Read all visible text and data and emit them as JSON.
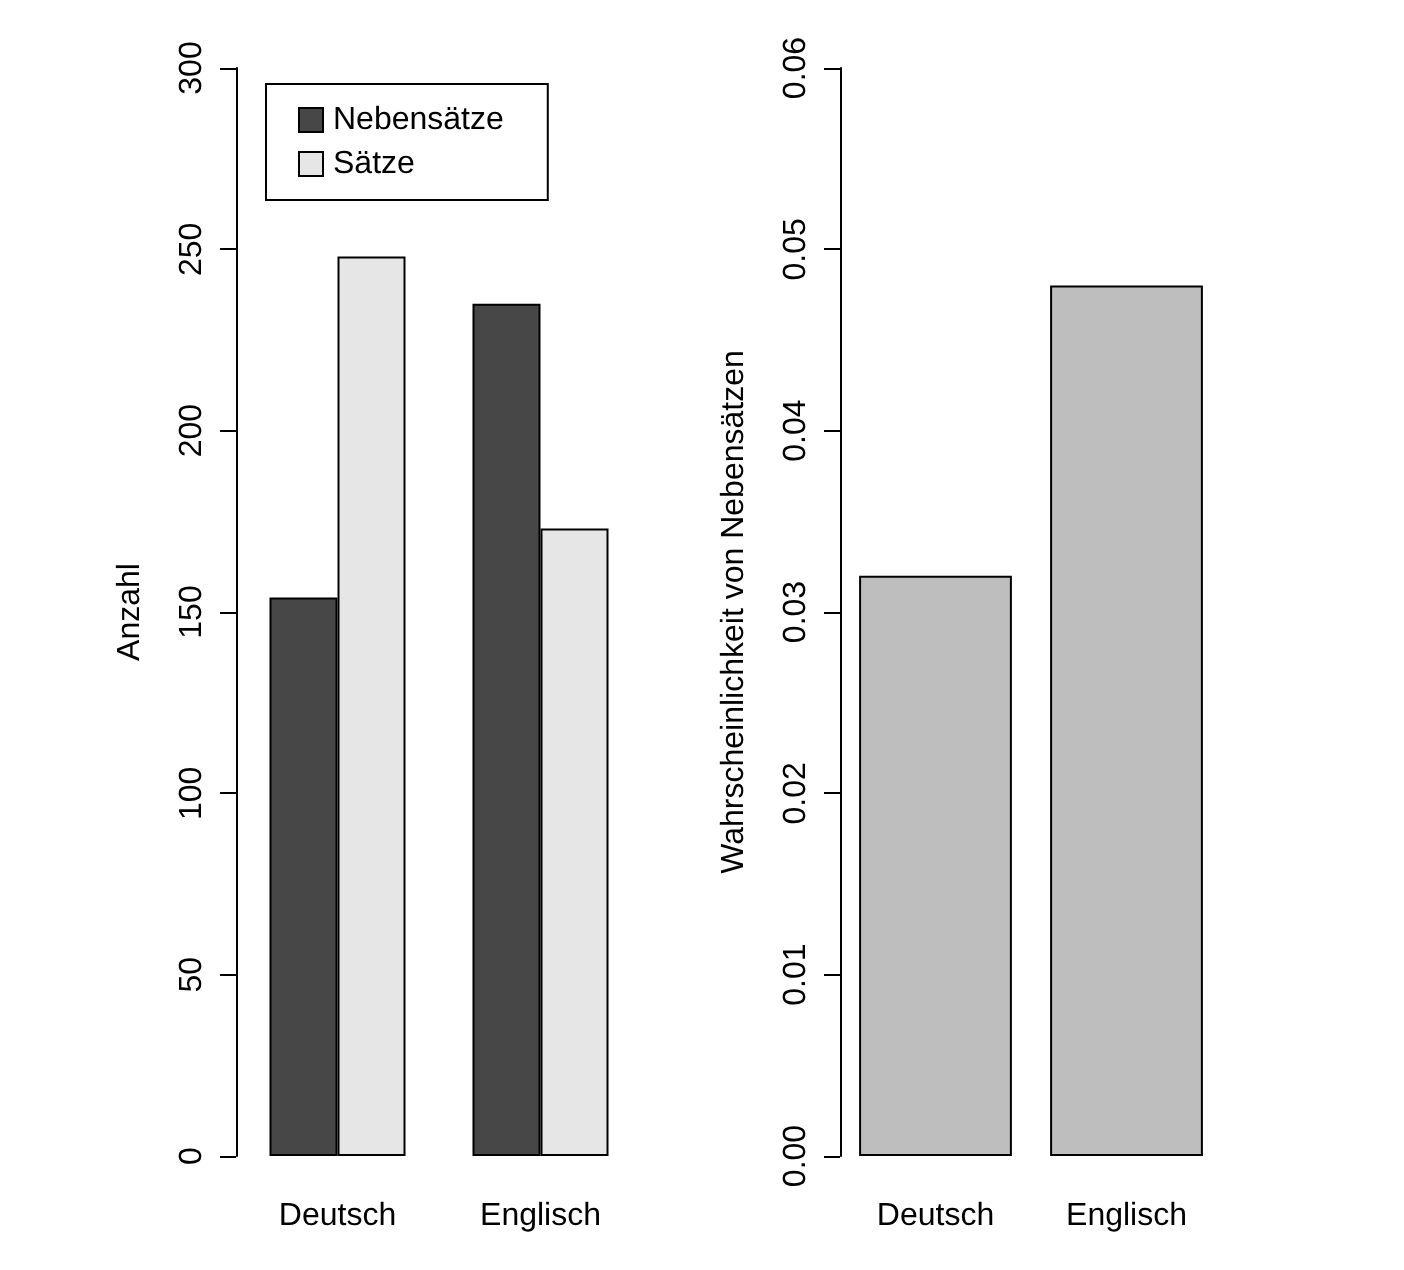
{
  "chart_data": [
    {
      "type": "bar",
      "ylabel": "Anzahl",
      "categories": [
        "Deutsch",
        "Englisch"
      ],
      "series": [
        {
          "name": "Nebensätze",
          "color": "#474747",
          "values": [
            154,
            235
          ]
        },
        {
          "name": "Sätze",
          "color": "#e6e6e6",
          "values": [
            248,
            173
          ]
        }
      ],
      "ylim": [
        0,
        300
      ],
      "yticks": [
        0,
        50,
        100,
        150,
        200,
        250,
        300
      ],
      "legend": "top",
      "grid": false
    },
    {
      "type": "bar",
      "ylabel": "Wahrscheinlichkeit von Nebensätzen",
      "categories": [
        "Deutsch",
        "Englisch"
      ],
      "series": [
        {
          "color": "#bebebe",
          "values": [
            0.032,
            0.048
          ]
        }
      ],
      "ylim": [
        0,
        0.06
      ],
      "yticks": [
        {
          "value": 0,
          "label": "0.00"
        },
        {
          "value": 0.01,
          "label": "0.01"
        },
        {
          "value": 0.02,
          "label": "0.02"
        },
        {
          "value": 0.03,
          "label": "0.03"
        },
        {
          "value": 0.04,
          "label": "0.04"
        },
        {
          "value": 0.05,
          "label": "0.05"
        },
        {
          "value": 0.06,
          "label": "0.06"
        }
      ],
      "grid": false
    }
  ]
}
